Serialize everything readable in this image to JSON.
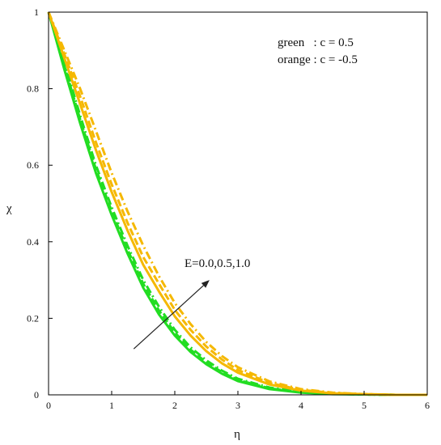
{
  "chart_data": {
    "type": "line",
    "title": "",
    "xlabel": "η",
    "ylabel": "χ",
    "xlim": [
      0,
      6
    ],
    "ylim": [
      0,
      1
    ],
    "xticks": [
      "0",
      "1",
      "2",
      "3",
      "4",
      "5",
      "6"
    ],
    "yticks": [
      "0",
      "0.2",
      "0.4",
      "0.6",
      "0.8",
      "1"
    ],
    "grid": false,
    "legend_lines": [
      "green   : c = 0.5",
      "orange : c = -0.5"
    ],
    "legend_placement": "top-right",
    "annotation": {
      "text": "E=0.0,0.5,1.0",
      "arrow_from": [
        1.35,
        0.12
      ],
      "arrow_to": [
        2.55,
        0.3
      ]
    },
    "x": [
      0,
      0.25,
      0.5,
      0.75,
      1,
      1.25,
      1.5,
      1.75,
      2,
      2.25,
      2.5,
      2.75,
      3,
      3.5,
      4,
      4.5,
      5,
      5.5,
      6
    ],
    "series": [
      {
        "color": "#22dd22",
        "dash": "solid",
        "values": [
          1.0,
          0.85,
          0.71,
          0.58,
          0.47,
          0.37,
          0.28,
          0.21,
          0.155,
          0.112,
          0.08,
          0.055,
          0.036,
          0.015,
          0.006,
          0.002,
          0.001,
          0.0,
          0.0
        ]
      },
      {
        "color": "#22dd22",
        "dash": "dashed",
        "values": [
          1.0,
          0.86,
          0.72,
          0.59,
          0.48,
          0.38,
          0.29,
          0.22,
          0.163,
          0.118,
          0.085,
          0.059,
          0.039,
          0.017,
          0.007,
          0.003,
          0.001,
          0.0,
          0.0
        ]
      },
      {
        "color": "#22dd22",
        "dash": "dashdot",
        "values": [
          1.0,
          0.87,
          0.73,
          0.6,
          0.49,
          0.39,
          0.3,
          0.23,
          0.17,
          0.124,
          0.09,
          0.063,
          0.042,
          0.019,
          0.008,
          0.003,
          0.001,
          0.0,
          0.0
        ]
      },
      {
        "color": "#f5b800",
        "dash": "solid",
        "values": [
          1.0,
          0.88,
          0.76,
          0.64,
          0.53,
          0.43,
          0.34,
          0.27,
          0.205,
          0.155,
          0.114,
          0.082,
          0.058,
          0.027,
          0.011,
          0.004,
          0.002,
          0.0,
          0.0
        ]
      },
      {
        "color": "#f5b800",
        "dash": "dashed",
        "values": [
          1.0,
          0.89,
          0.78,
          0.66,
          0.55,
          0.45,
          0.36,
          0.29,
          0.222,
          0.17,
          0.126,
          0.092,
          0.065,
          0.031,
          0.013,
          0.005,
          0.002,
          0.0,
          0.0
        ]
      },
      {
        "color": "#f5b800",
        "dash": "dashdot",
        "values": [
          1.0,
          0.9,
          0.8,
          0.69,
          0.58,
          0.48,
          0.39,
          0.31,
          0.24,
          0.185,
          0.138,
          0.101,
          0.072,
          0.035,
          0.015,
          0.006,
          0.002,
          0.0,
          0.0
        ]
      }
    ]
  }
}
